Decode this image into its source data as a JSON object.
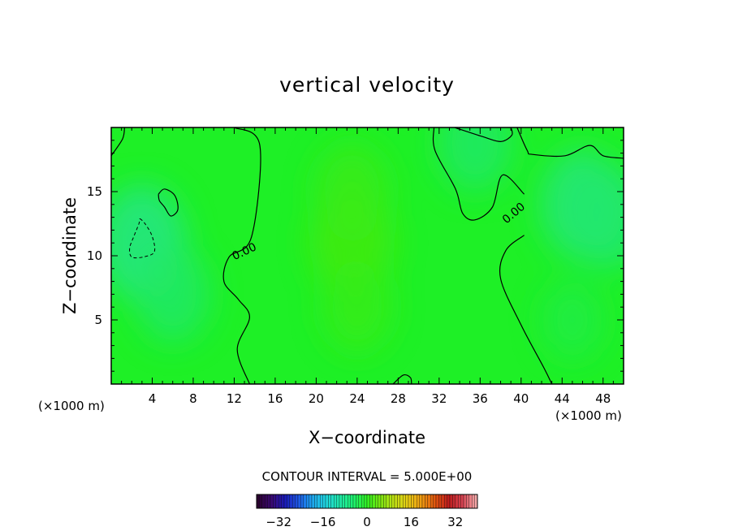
{
  "chart_data": {
    "type": "heatmap",
    "title": "vertical velocity",
    "xlabel": "X−coordinate",
    "ylabel": "Z−coordinate",
    "x_unit_left": "(×1000 m)",
    "x_unit_right": "(×1000 m)",
    "xlim": [
      0,
      50
    ],
    "ylim": [
      0,
      20
    ],
    "x_ticks": [
      4,
      8,
      12,
      16,
      20,
      24,
      28,
      32,
      36,
      40,
      44,
      48
    ],
    "y_ticks": [
      5,
      10,
      15
    ],
    "grid": false,
    "contour_interval_text": "CONTOUR INTERVAL = 5.000E+00",
    "contour_labels": [
      {
        "text": "0.00",
        "x": 13,
        "y": 10.3,
        "angle": -25
      },
      {
        "text": "0.00",
        "x": 39.3,
        "y": 13.3,
        "angle": -40
      }
    ],
    "zero_contours": [
      [
        [
          12,
          20
        ],
        [
          14.5,
          18.6
        ],
        [
          13.7,
          11.5
        ],
        [
          11.5,
          9.9
        ],
        [
          11,
          8
        ],
        [
          12.4,
          6.6
        ],
        [
          13.5,
          5.2
        ],
        [
          12.3,
          2.7
        ],
        [
          13.5,
          0
        ]
      ],
      [
        [
          31.5,
          20
        ],
        [
          31.6,
          18.2
        ],
        [
          33.6,
          15.2
        ],
        [
          34.3,
          13.3
        ],
        [
          35.5,
          12.8
        ],
        [
          37.2,
          13.8
        ],
        [
          38.2,
          16.3
        ],
        [
          40.3,
          14.8
        ]
      ],
      [
        [
          40.3,
          11.6
        ],
        [
          38.5,
          10.4
        ],
        [
          38,
          8.2
        ],
        [
          40,
          4.6
        ],
        [
          42.2,
          1.3
        ],
        [
          43,
          0
        ]
      ],
      [
        [
          39.6,
          20
        ],
        [
          40.6,
          18.2
        ],
        [
          41.1,
          17.9
        ],
        [
          44.3,
          17.8
        ],
        [
          46.7,
          18.6
        ],
        [
          48,
          17.8
        ],
        [
          50,
          17.6
        ]
      ],
      [
        [
          0,
          17.8
        ],
        [
          1.1,
          19.1
        ],
        [
          1.3,
          20
        ]
      ],
      [
        [
          27.5,
          0
        ],
        [
          28.5,
          0.7
        ],
        [
          29.2,
          0.5
        ],
        [
          29.3,
          0
        ]
      ],
      [
        [
          33.5,
          20
        ],
        [
          36.2,
          19.3
        ],
        [
          38,
          18.9
        ],
        [
          39.1,
          19.4
        ],
        [
          39,
          20
        ]
      ],
      [
        [
          4.6,
          14.8
        ],
        [
          5.2,
          15.2
        ],
        [
          6.2,
          14.7
        ],
        [
          6.5,
          13.6
        ],
        [
          5.8,
          13.1
        ],
        [
          5.2,
          13.8
        ],
        [
          4.7,
          14.3
        ],
        [
          4.6,
          14.8
        ]
      ]
    ],
    "negative_contours": [
      [
        [
          2.8,
          12.9
        ],
        [
          3.3,
          12.5
        ],
        [
          4,
          11.5
        ],
        [
          4.2,
          10.3
        ],
        [
          3.1,
          9.9
        ],
        [
          2,
          9.9
        ],
        [
          1.8,
          10.6
        ],
        [
          2.2,
          11.5
        ],
        [
          2.7,
          12.5
        ],
        [
          2.8,
          12.9
        ]
      ]
    ],
    "field_blobs": [
      {
        "x": 23.5,
        "y": 11,
        "value": 4
      },
      {
        "x": 23.5,
        "y": 15,
        "value": 3
      },
      {
        "x": 24,
        "y": 6,
        "value": 2.5
      },
      {
        "x": 3,
        "y": 11,
        "value": -4.5
      },
      {
        "x": 6,
        "y": 7,
        "value": -3
      },
      {
        "x": 46,
        "y": 14,
        "value": -4
      },
      {
        "x": 48.5,
        "y": 13,
        "value": -3.5
      },
      {
        "x": 35.5,
        "y": 18.8,
        "value": -3
      },
      {
        "x": 45,
        "y": 5,
        "value": -1.5
      }
    ],
    "colorbar": {
      "min": -40,
      "max": 40,
      "ticks": [
        -32,
        -16,
        0,
        16,
        32
      ],
      "tick_labels": [
        "−32",
        "−16",
        "0",
        "16",
        "32"
      ],
      "colors": [
        "#2b0030",
        "#3a0a72",
        "#1a1ab8",
        "#1e5ae6",
        "#1ea6ee",
        "#20d4dc",
        "#20e8a8",
        "#1ef070",
        "#30ee22",
        "#7ce612",
        "#c0e014",
        "#e6cc14",
        "#ee9a12",
        "#e0560e",
        "#be1c1c",
        "#d64452",
        "#f2a8a8"
      ]
    }
  }
}
